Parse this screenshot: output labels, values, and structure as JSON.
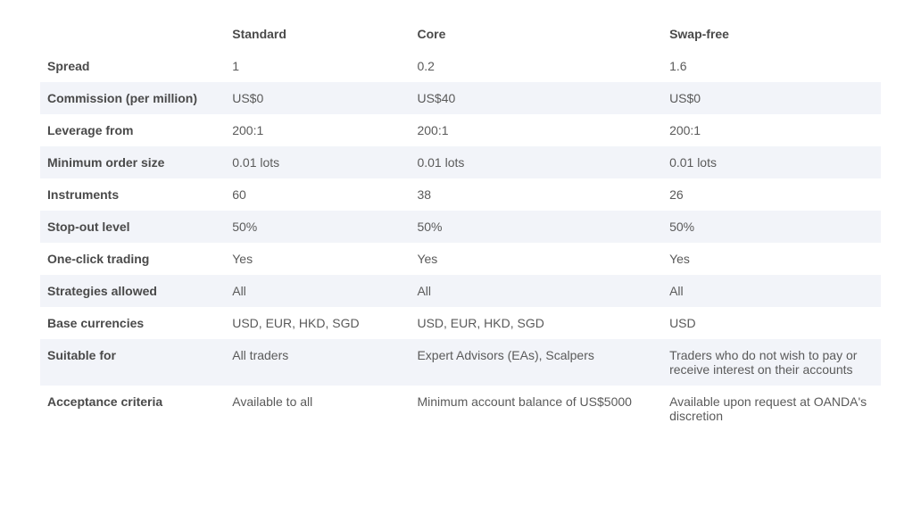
{
  "table": {
    "type": "table",
    "columns": [
      "",
      "Standard",
      "Core",
      "Swap-free"
    ],
    "col_widths_pct": [
      22,
      22,
      30,
      26
    ],
    "text_color": "#5a5a5a",
    "label_color": "#4a4a4a",
    "header_fontweight": 700,
    "body_fontweight": 400,
    "fontsize": 14,
    "stripe_color": "#f2f4f9",
    "background_color": "#ffffff",
    "rows": [
      {
        "label": "Spread",
        "values": [
          "1",
          "0.2",
          "1.6"
        ],
        "striped": false
      },
      {
        "label": "Commission (per million)",
        "values": [
          "US$0",
          "US$40",
          "US$0"
        ],
        "striped": true
      },
      {
        "label": "Leverage from",
        "values": [
          "200:1",
          "200:1",
          "200:1"
        ],
        "striped": false
      },
      {
        "label": "Minimum order size",
        "values": [
          "0.01 lots",
          "0.01 lots",
          "0.01 lots"
        ],
        "striped": true
      },
      {
        "label": "Instruments",
        "values": [
          "60",
          "38",
          "26"
        ],
        "striped": false
      },
      {
        "label": "Stop-out level",
        "values": [
          "50%",
          "50%",
          "50%"
        ],
        "striped": true
      },
      {
        "label": "One-click trading",
        "values": [
          "Yes",
          "Yes",
          "Yes"
        ],
        "striped": false
      },
      {
        "label": "Strategies allowed",
        "values": [
          "All",
          "All",
          "All"
        ],
        "striped": true
      },
      {
        "label": "Base currencies",
        "values": [
          "USD, EUR, HKD, SGD",
          "USD, EUR, HKD, SGD",
          "USD"
        ],
        "striped": false
      },
      {
        "label": "Suitable for",
        "values": [
          "All traders",
          "Expert Advisors (EAs), Scalpers",
          "Traders who do not wish to pay or receive interest on their accounts"
        ],
        "striped": true
      },
      {
        "label": "Acceptance criteria",
        "values": [
          "Available to all",
          "Minimum account balance of US$5000",
          "Available upon request at OANDA's discretion"
        ],
        "striped": false
      }
    ]
  }
}
